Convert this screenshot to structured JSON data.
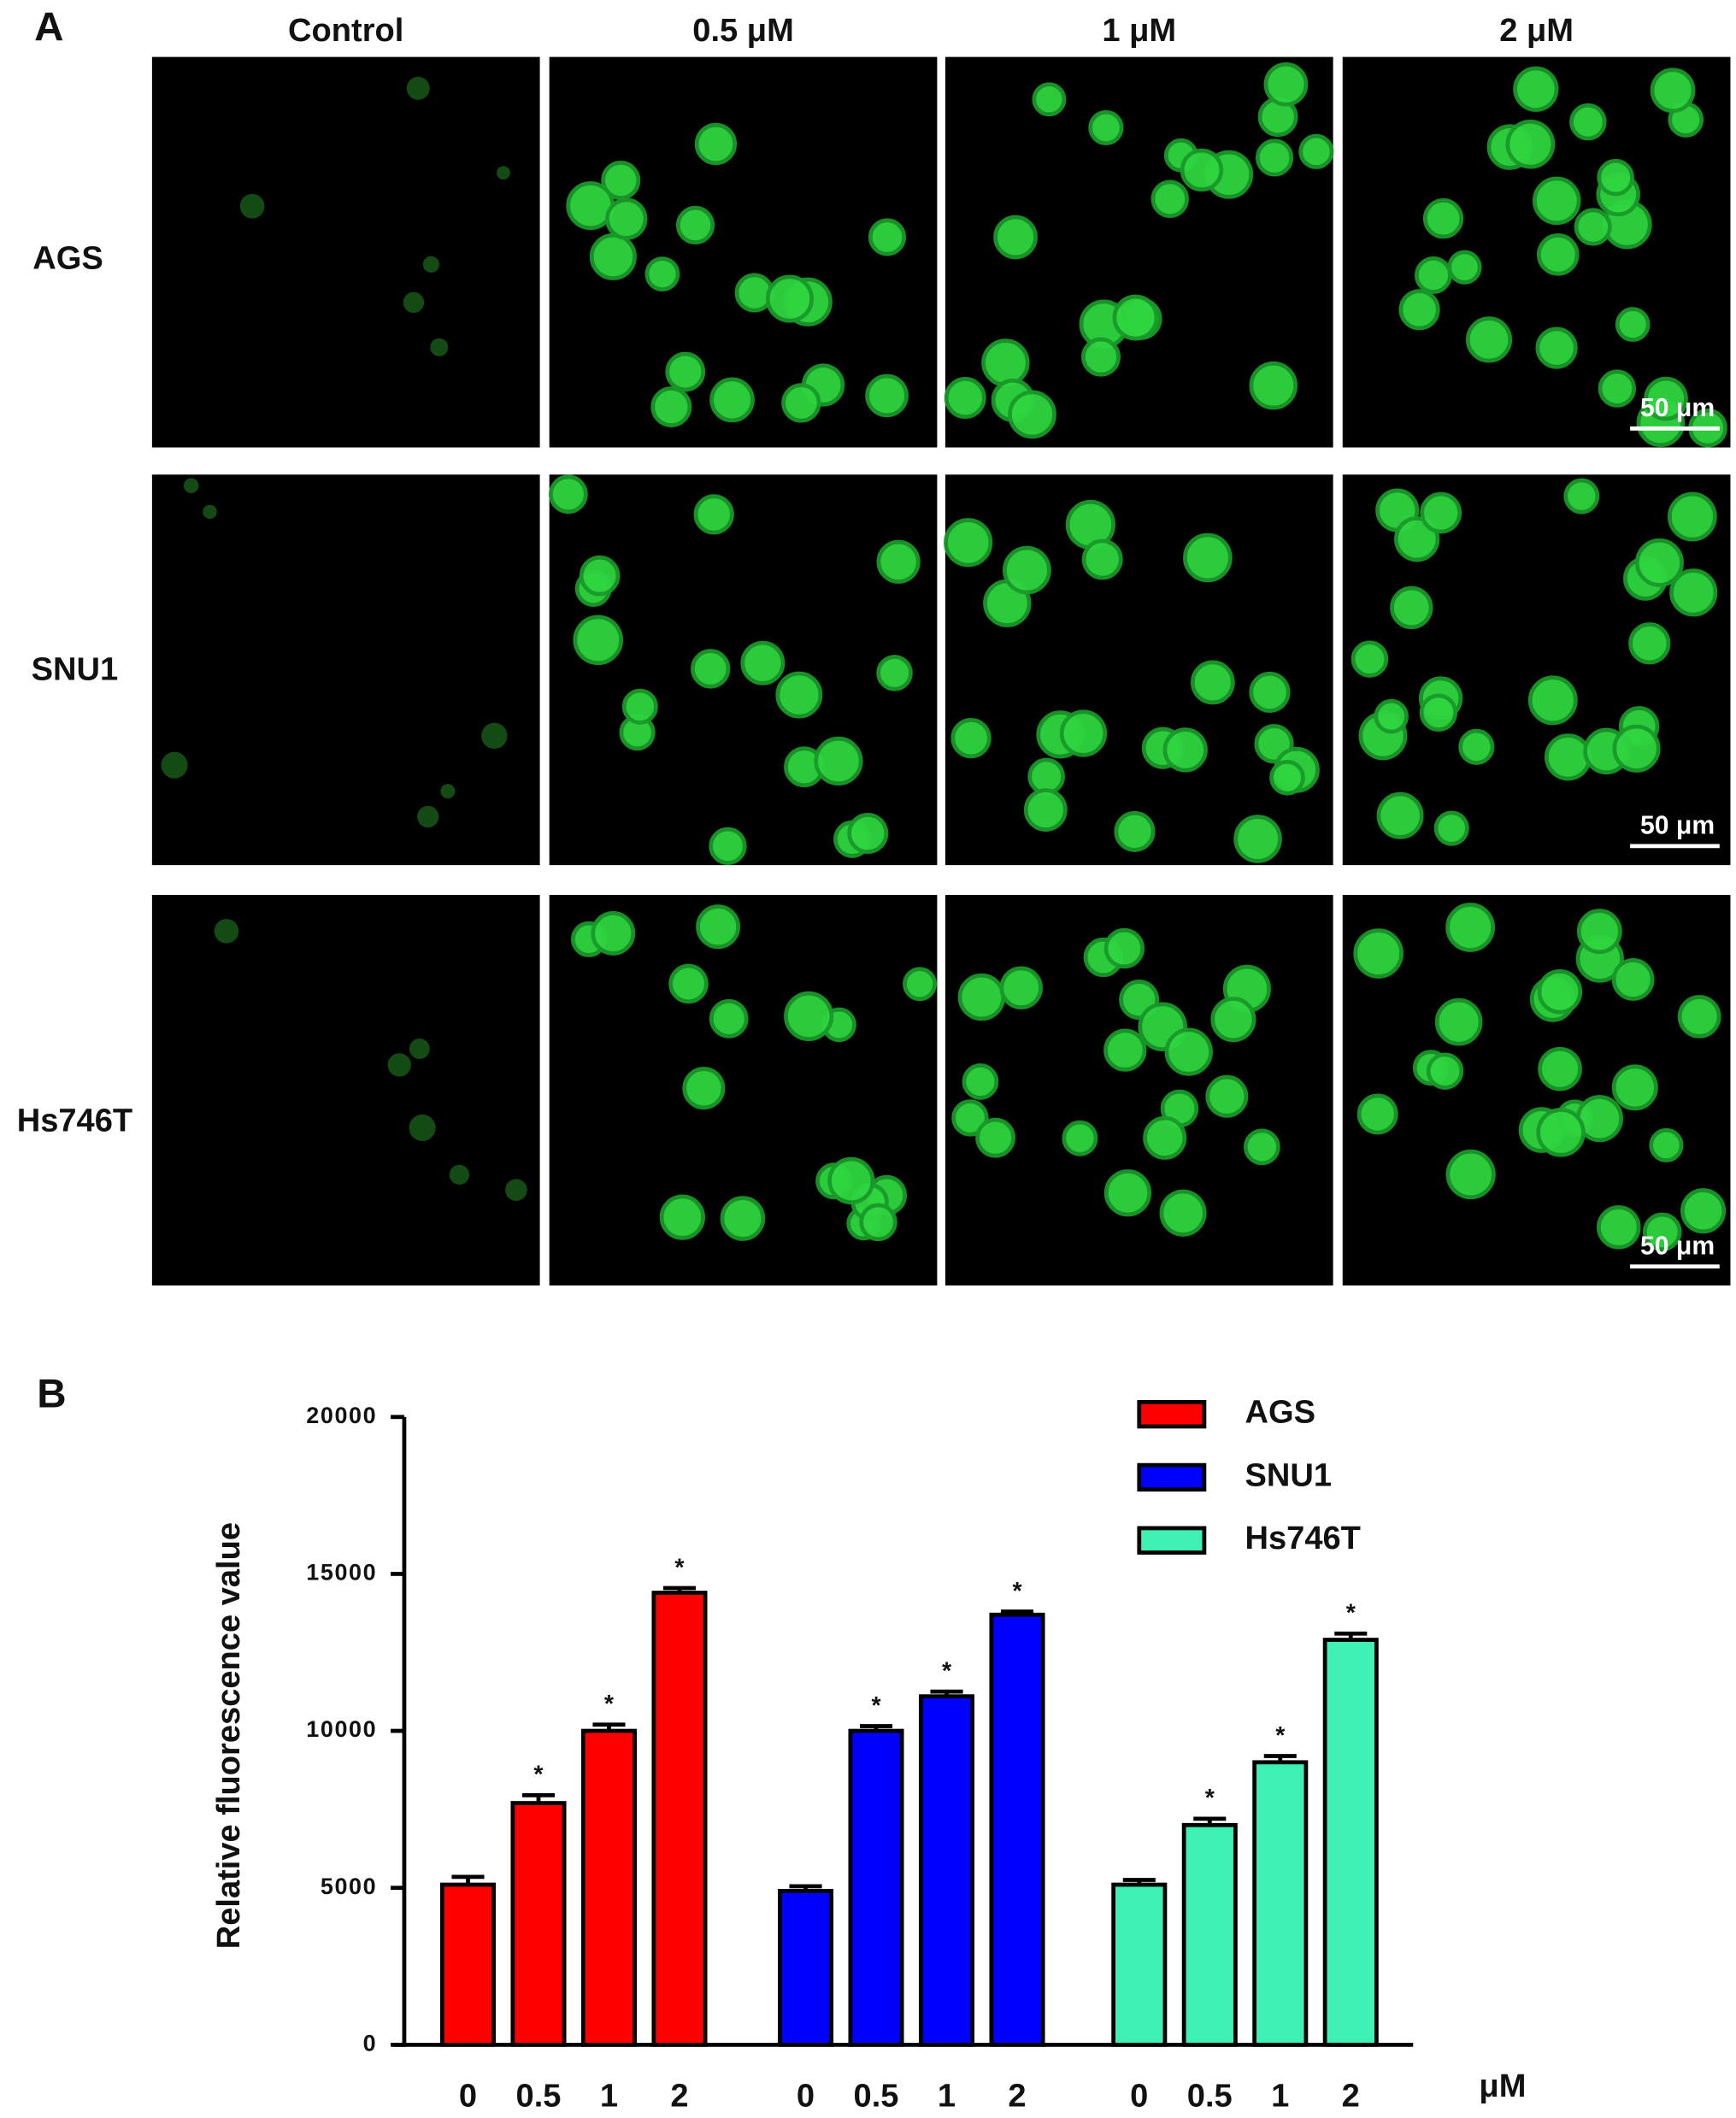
{
  "panel_a": {
    "label": "A",
    "columns": [
      "Control",
      "0.5 μM",
      "1 μM",
      "2 μM"
    ],
    "rows": [
      "AGS",
      "SNU1",
      "Hs746T"
    ],
    "scale_bar": "50 μm"
  },
  "chart_data": {
    "type": "bar",
    "panel_label": "B",
    "ylabel": "Relative fluorescence value",
    "x_unit": "μM",
    "categories": [
      "0",
      "0.5",
      "1",
      "2"
    ],
    "series": [
      {
        "name": "AGS",
        "color": "#ff0000",
        "values": [
          5100,
          7700,
          10000,
          14400
        ],
        "errors": [
          250,
          250,
          200,
          150
        ],
        "significance": [
          null,
          "*",
          "*",
          "*"
        ]
      },
      {
        "name": "SNU1",
        "color": "#0000ff",
        "values": [
          4900,
          10000,
          11100,
          13700
        ],
        "errors": [
          150,
          150,
          150,
          100
        ],
        "significance": [
          null,
          "*",
          "*",
          "*"
        ]
      },
      {
        "name": "Hs746T",
        "color": "#3ff0b4",
        "values": [
          5100,
          7000,
          9000,
          12900
        ],
        "errors": [
          150,
          200,
          200,
          200
        ],
        "significance": [
          null,
          "*",
          "*",
          "*"
        ]
      }
    ],
    "ylim": [
      0,
      20000
    ],
    "yticks": [
      0,
      5000,
      10000,
      15000,
      20000
    ],
    "legend": "upper right"
  }
}
